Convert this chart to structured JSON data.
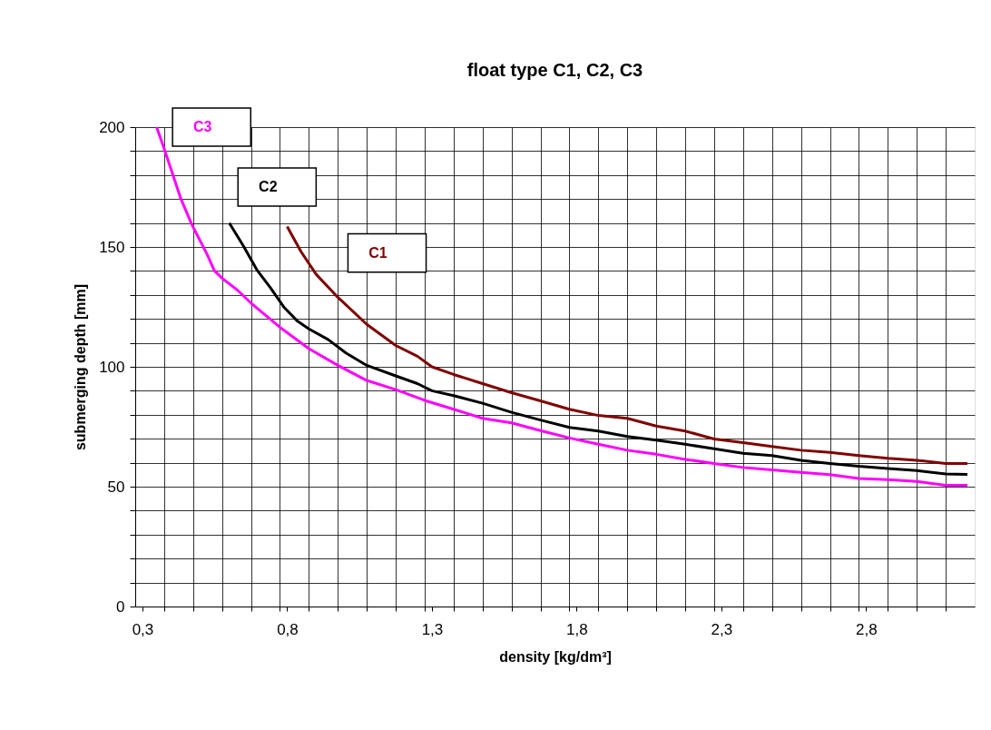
{
  "chart_data": {
    "type": "line",
    "title": "float type C1, C2, C3",
    "xlabel": "density [kg/dm³]",
    "ylabel": "submerging depth [mm]",
    "xlim": [
      0.275,
      3.175
    ],
    "ylim": [
      0,
      200
    ],
    "xticks": [
      {
        "value": 0.3,
        "label": "0,3"
      },
      {
        "value": 0.8,
        "label": "0,8"
      },
      {
        "value": 1.3,
        "label": "1,3"
      },
      {
        "value": 1.8,
        "label": "1,8"
      },
      {
        "value": 2.3,
        "label": "2,3"
      },
      {
        "value": 2.8,
        "label": "2,8"
      },
      {
        "value": 0.375,
        "label": null
      },
      {
        "value": 0.475,
        "label": null
      },
      {
        "value": 0.575,
        "label": null
      },
      {
        "value": 0.675,
        "label": null
      },
      {
        "value": 0.775,
        "label": null
      },
      {
        "value": 0.875,
        "label": null
      },
      {
        "value": 0.975,
        "label": null
      },
      {
        "value": 1.075,
        "label": null
      },
      {
        "value": 1.175,
        "label": null
      },
      {
        "value": 1.275,
        "label": null
      },
      {
        "value": 1.375,
        "label": null
      },
      {
        "value": 1.475,
        "label": null
      },
      {
        "value": 1.575,
        "label": null
      },
      {
        "value": 1.675,
        "label": null
      },
      {
        "value": 1.775,
        "label": null
      },
      {
        "value": 1.875,
        "label": null
      },
      {
        "value": 1.975,
        "label": null
      },
      {
        "value": 2.075,
        "label": null
      },
      {
        "value": 2.175,
        "label": null
      },
      {
        "value": 2.275,
        "label": null
      },
      {
        "value": 2.375,
        "label": null
      },
      {
        "value": 2.475,
        "label": null
      },
      {
        "value": 2.575,
        "label": null
      },
      {
        "value": 2.675,
        "label": null
      },
      {
        "value": 2.775,
        "label": null
      },
      {
        "value": 2.875,
        "label": null
      },
      {
        "value": 2.975,
        "label": null
      },
      {
        "value": 3.075,
        "label": null
      }
    ],
    "yticks": [
      0,
      50,
      100,
      150,
      200,
      {
        "value": 10,
        "label": null
      },
      {
        "value": 20,
        "label": null
      },
      {
        "value": 30,
        "label": null
      },
      {
        "value": 40,
        "label": null
      },
      {
        "value": 60,
        "label": null
      },
      {
        "value": 70,
        "label": null
      },
      {
        "value": 80,
        "label": null
      },
      {
        "value": 90,
        "label": null
      },
      {
        "value": 110,
        "label": null
      },
      {
        "value": 120,
        "label": null
      },
      {
        "value": 130,
        "label": null
      },
      {
        "value": 140,
        "label": null
      },
      {
        "value": 160,
        "label": null
      },
      {
        "value": 170,
        "label": null
      },
      {
        "value": 180,
        "label": null
      },
      {
        "value": 190,
        "label": null
      }
    ],
    "grid": true,
    "legend": false,
    "marker": "none",
    "line_style": "solid",
    "series": [
      {
        "name": "C1",
        "color": "#800000",
        "x": [
          0.8,
          0.848,
          0.9,
          0.975,
          1.075,
          1.175,
          1.25,
          1.3,
          1.375,
          1.475,
          1.575,
          1.675,
          1.775,
          1.875,
          1.975,
          2.075,
          2.175,
          2.275,
          2.375,
          2.475,
          2.575,
          2.675,
          2.775,
          2.875,
          2.975,
          3.075,
          3.15
        ],
        "values": [
          158.5,
          148,
          138.6,
          129,
          117.7,
          108.9,
          104.4,
          100,
          96.8,
          93,
          89.2,
          85.8,
          82.3,
          79.7,
          78.5,
          75.3,
          73.2,
          69.9,
          68.4,
          66.8,
          65.2,
          64.3,
          63,
          61.8,
          61,
          59.7,
          59.7
        ]
      },
      {
        "name": "C2",
        "color": "#000000",
        "x": [
          0.6,
          0.648,
          0.695,
          0.742,
          0.79,
          0.836,
          0.875,
          0.941,
          1.004,
          1.075,
          1.175,
          1.25,
          1.3,
          1.375,
          1.475,
          1.575,
          1.675,
          1.775,
          1.875,
          1.975,
          2.075,
          2.175,
          2.275,
          2.375,
          2.475,
          2.575,
          2.675,
          2.775,
          2.875,
          2.975,
          3.075,
          3.15
        ],
        "values": [
          160,
          150.6,
          140.5,
          133,
          124.7,
          119,
          115.8,
          111.4,
          105.7,
          100.6,
          96.2,
          93,
          90,
          88,
          84.8,
          81,
          77.8,
          74.7,
          73.2,
          70.9,
          69.4,
          67.7,
          65.8,
          63.9,
          63,
          61,
          59.7,
          58.5,
          57.6,
          56.7,
          55.3,
          55.1
        ]
      },
      {
        "name": "C3",
        "color": "#ff00ff",
        "x": [
          0.349,
          0.375,
          0.433,
          0.47,
          0.523,
          0.549,
          0.575,
          0.628,
          0.675,
          0.775,
          0.875,
          0.975,
          1.075,
          1.175,
          1.275,
          1.375,
          1.475,
          1.575,
          1.675,
          1.775,
          1.875,
          1.975,
          2.075,
          2.175,
          2.275,
          2.375,
          2.475,
          2.575,
          2.675,
          2.775,
          2.875,
          2.975,
          3.075,
          3.15
        ],
        "values": [
          200,
          191,
          170,
          159.5,
          147,
          140,
          137,
          132,
          126.6,
          116.5,
          107.6,
          100.6,
          94.3,
          90.5,
          86,
          82.3,
          78.5,
          76.6,
          73.4,
          70.3,
          67.7,
          65.2,
          63.5,
          61.4,
          59.7,
          58,
          57,
          56,
          55,
          53.4,
          52.9,
          52.2,
          50.6,
          50.6
        ]
      }
    ]
  }
}
